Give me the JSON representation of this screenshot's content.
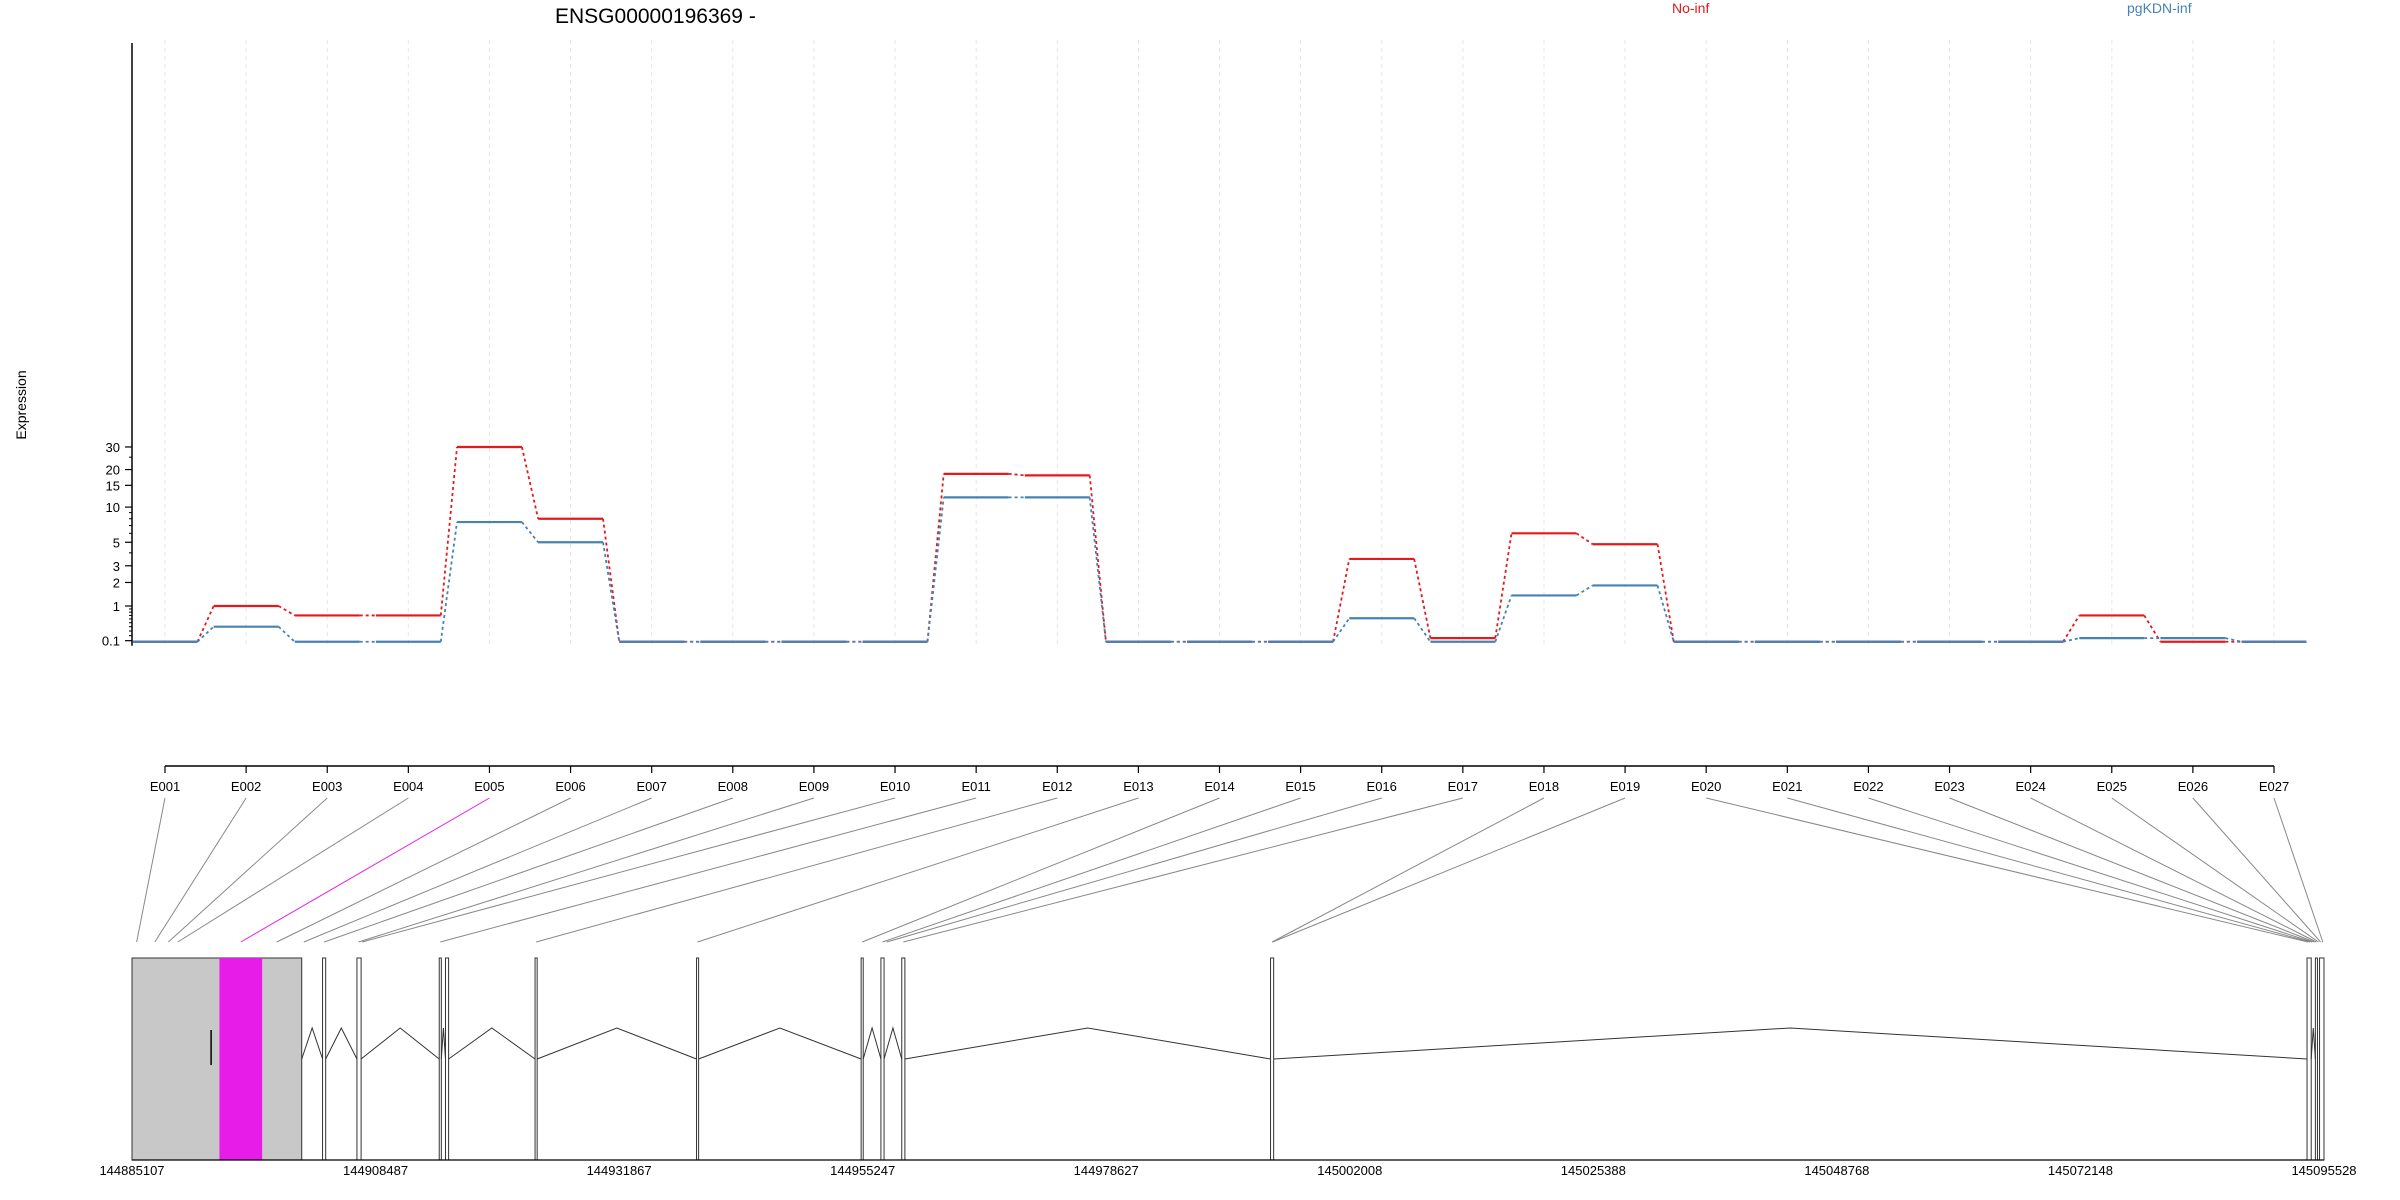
{
  "chart_data": {
    "type": "line",
    "title": "ENSG00000196369 -",
    "ylabel": "Expression",
    "xlabel": "",
    "y_scale": "log",
    "ylim": [
      0.08,
      35
    ],
    "y_ticks": [
      0.1,
      1,
      2,
      3,
      5,
      10,
      15,
      20,
      30
    ],
    "grid": "vertical dashed lines at exon centers",
    "legend_position": "top",
    "categories": [
      "E001",
      "E002",
      "E003",
      "E004",
      "E005",
      "E006",
      "E007",
      "E008",
      "E009",
      "E010",
      "E011",
      "E012",
      "E013",
      "E014",
      "E015",
      "E016",
      "E017",
      "E018",
      "E019",
      "E020",
      "E021",
      "E022",
      "E023",
      "E024",
      "E025",
      "E026",
      "E027"
    ],
    "series": [
      {
        "name": "No-inf",
        "color": "#e31a1c",
        "values": [
          0.08,
          1.0,
          0.7,
          0.7,
          30,
          8,
          0.08,
          0.08,
          0.08,
          0.08,
          18.5,
          18,
          0.08,
          0.08,
          0.08,
          3.5,
          0.15,
          6,
          4.8,
          0.08,
          0.08,
          0.08,
          0.08,
          0.08,
          0.7,
          0.08,
          0.08
        ]
      },
      {
        "name": "pgKDN-inf",
        "color": "#4682b4",
        "values": [
          0.08,
          0.4,
          0.08,
          0.08,
          7.5,
          5,
          0.08,
          0.08,
          0.08,
          0.08,
          12,
          12,
          0.08,
          0.08,
          0.08,
          0.62,
          0.08,
          1.4,
          1.85,
          0.08,
          0.08,
          0.08,
          0.08,
          0.08,
          0.15,
          0.15,
          0.08
        ]
      }
    ],
    "genomic_axis": {
      "ticks": [
        "144885107",
        "144908487",
        "144931867",
        "144955247",
        "144978627",
        "145002008",
        "145025388",
        "145048768",
        "145072148",
        "145095528"
      ],
      "range": [
        144885107,
        145095528
      ]
    },
    "highlighted_exon": "E005",
    "highlight_color": "#e81ce8",
    "exon_span_color": "#c8c8c8"
  }
}
